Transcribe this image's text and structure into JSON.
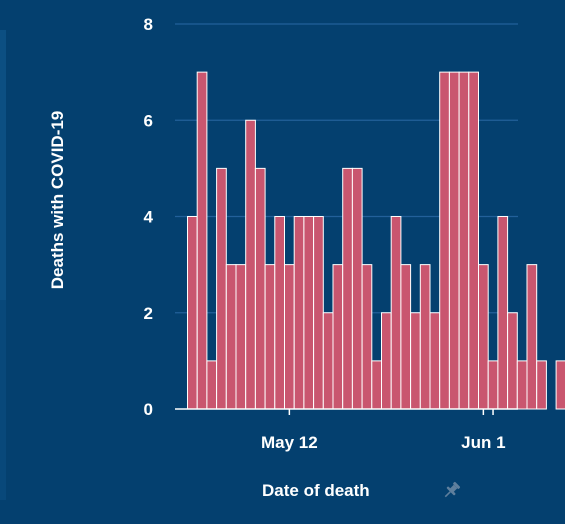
{
  "theme": {
    "background": "#04406f",
    "bar_fill": "#c9566f",
    "bar_stroke": "#ffffff",
    "grid": "#22609a",
    "axis": "#ffffff",
    "text": "#ffffff"
  },
  "pin_icon": "pin-icon",
  "chart_data": {
    "type": "bar",
    "title": "",
    "xlabel": "Date of death",
    "ylabel": "Deaths with COVID-19",
    "ylim": [
      0,
      8
    ],
    "yticks": [
      "0",
      "2",
      "4",
      "6",
      "8"
    ],
    "x_tick_labels": [
      "May 12",
      "Jun 1"
    ],
    "grid": true,
    "categories": [
      "May 2",
      "May 3",
      "May 4",
      "May 5",
      "May 6",
      "May 7",
      "May 8",
      "May 9",
      "May 10",
      "May 11",
      "May 12",
      "May 13",
      "May 14",
      "May 15",
      "May 16",
      "May 17",
      "May 18",
      "May 19",
      "May 20",
      "May 21",
      "May 22",
      "May 23",
      "May 24",
      "May 25",
      "May 26",
      "May 27",
      "May 28",
      "May 29",
      "May 30",
      "May 31",
      "Jun 1",
      "Jun 2",
      "Jun 3",
      "Jun 4",
      "Jun 5",
      "Jun 6",
      "Jun 7",
      "Jun 8",
      "Jun 9",
      "Jun 10",
      "Jun 11",
      "Jun 12",
      "Jun 13"
    ],
    "values": [
      4,
      7,
      1,
      5,
      3,
      3,
      6,
      5,
      3,
      4,
      3,
      4,
      4,
      4,
      2,
      3,
      5,
      5,
      3,
      1,
      2,
      4,
      3,
      2,
      3,
      2,
      7,
      7,
      7,
      7,
      3,
      1,
      4,
      2,
      1,
      3,
      1,
      0,
      1,
      null,
      null,
      null,
      null
    ]
  }
}
